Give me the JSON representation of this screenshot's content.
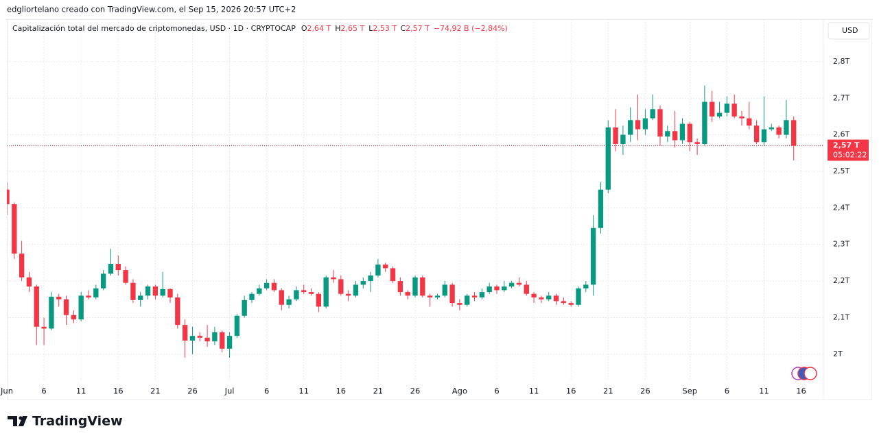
{
  "header": "edgliortelano creado con TradingView.com, el Sep 15, 2026 20:57 UTC+2",
  "brand": "TradingView",
  "chart_data": {
    "type": "candlestick",
    "title": "Capitalización total del mercado de criptomonedas, USD · 1D · CRYPTOCAP",
    "legend_values": [
      {
        "key": "O",
        "text": "2,64 T"
      },
      {
        "key": "H",
        "text": "2,65 T"
      },
      {
        "key": "L",
        "text": "2,53 T"
      },
      {
        "key": "C",
        "text": "2,57 T"
      }
    ],
    "change": "−74,92 B (−2,84%)",
    "currency": "USD",
    "last_price": {
      "value": 2.57,
      "label": "2,57 T"
    },
    "countdown": "05:02:22",
    "up_color": "#089981",
    "down_color": "#f23645",
    "grid": true,
    "x": [
      "2026-06-01",
      "2026-06-02",
      "2026-06-03",
      "2026-06-04",
      "2026-06-05",
      "2026-06-06",
      "2026-06-07",
      "2026-06-08",
      "2026-06-09",
      "2026-06-10",
      "2026-06-11",
      "2026-06-12",
      "2026-06-13",
      "2026-06-14",
      "2026-06-15",
      "2026-06-16",
      "2026-06-17",
      "2026-06-18",
      "2026-06-19",
      "2026-06-20",
      "2026-06-21",
      "2026-06-22",
      "2026-06-23",
      "2026-06-24",
      "2026-06-25",
      "2026-06-26",
      "2026-06-27",
      "2026-06-28",
      "2026-06-29",
      "2026-06-30",
      "2026-07-01",
      "2026-07-02",
      "2026-07-03",
      "2026-07-04",
      "2026-07-05",
      "2026-07-06",
      "2026-07-07",
      "2026-07-08",
      "2026-07-09",
      "2026-07-10",
      "2026-07-11",
      "2026-07-12",
      "2026-07-13",
      "2026-07-14",
      "2026-07-15",
      "2026-07-16",
      "2026-07-17",
      "2026-07-18",
      "2026-07-19",
      "2026-07-20",
      "2026-07-21",
      "2026-07-22",
      "2026-07-23",
      "2026-07-24",
      "2026-07-25",
      "2026-07-26",
      "2026-07-27",
      "2026-07-28",
      "2026-07-29",
      "2026-07-30",
      "2026-07-31",
      "2026-08-01",
      "2026-08-02",
      "2026-08-03",
      "2026-08-04",
      "2026-08-05",
      "2026-08-06",
      "2026-08-07",
      "2026-08-08",
      "2026-08-09",
      "2026-08-10",
      "2026-08-11",
      "2026-08-12",
      "2026-08-13",
      "2026-08-14",
      "2026-08-15",
      "2026-08-16",
      "2026-08-17",
      "2026-08-18",
      "2026-08-19",
      "2026-08-20",
      "2026-08-21",
      "2026-08-22",
      "2026-08-23",
      "2026-08-24",
      "2026-08-25",
      "2026-08-26",
      "2026-08-27",
      "2026-08-28",
      "2026-08-29",
      "2026-08-30",
      "2026-08-31",
      "2026-09-01",
      "2026-09-02",
      "2026-09-03",
      "2026-09-04",
      "2026-09-05",
      "2026-09-06",
      "2026-09-07",
      "2026-09-08",
      "2026-09-09",
      "2026-09-10",
      "2026-09-11",
      "2026-09-12",
      "2026-09-13",
      "2026-09-14",
      "2026-09-15"
    ],
    "open": [
      2.45,
      2.41,
      2.275,
      2.21,
      2.185,
      2.075,
      2.07,
      2.157,
      2.15,
      2.107,
      2.095,
      2.16,
      2.155,
      2.18,
      2.22,
      2.247,
      2.23,
      2.195,
      2.148,
      2.16,
      2.185,
      2.16,
      2.178,
      2.155,
      2.08,
      2.037,
      2.05,
      2.045,
      2.035,
      2.06,
      2.015,
      2.05,
      2.105,
      2.148,
      2.165,
      2.18,
      2.195,
      2.175,
      2.135,
      2.15,
      2.175,
      2.17,
      2.165,
      2.13,
      2.21,
      2.205,
      2.165,
      2.16,
      2.19,
      2.2,
      2.215,
      2.245,
      2.235,
      2.2,
      2.17,
      2.16,
      2.21,
      2.16,
      2.155,
      2.16,
      2.19,
      2.14,
      2.135,
      2.16,
      2.155,
      2.17,
      2.185,
      2.175,
      2.185,
      2.195,
      2.19,
      2.165,
      2.155,
      2.15,
      2.16,
      2.145,
      2.14,
      2.135,
      2.18,
      2.19,
      2.345,
      2.45,
      2.62,
      2.575,
      2.6,
      2.64,
      2.615,
      2.645,
      2.67,
      2.595,
      2.61,
      2.585,
      2.63,
      2.58,
      2.575,
      2.69,
      2.65,
      2.66,
      2.685,
      2.65,
      2.645,
      2.625,
      2.58,
      2.615,
      2.62,
      2.6,
      2.64
    ],
    "high": [
      2.47,
      2.415,
      2.31,
      2.225,
      2.19,
      2.1,
      2.17,
      2.165,
      2.16,
      2.12,
      2.17,
      2.175,
      2.19,
      2.23,
      2.288,
      2.27,
      2.24,
      2.205,
      2.17,
      2.19,
      2.19,
      2.225,
      2.18,
      2.165,
      2.095,
      2.075,
      2.06,
      2.08,
      2.075,
      2.065,
      2.06,
      2.11,
      2.16,
      2.17,
      2.19,
      2.205,
      2.205,
      2.18,
      2.16,
      2.185,
      2.19,
      2.18,
      2.17,
      2.215,
      2.23,
      2.215,
      2.175,
      2.2,
      2.21,
      2.225,
      2.26,
      2.25,
      2.24,
      2.21,
      2.175,
      2.215,
      2.215,
      2.165,
      2.165,
      2.2,
      2.195,
      2.15,
      2.165,
      2.17,
      2.18,
      2.195,
      2.19,
      2.2,
      2.2,
      2.21,
      2.2,
      2.17,
      2.16,
      2.17,
      2.165,
      2.155,
      2.145,
      2.185,
      2.2,
      2.38,
      2.47,
      2.64,
      2.67,
      2.625,
      2.675,
      2.71,
      2.67,
      2.71,
      2.68,
      2.625,
      2.665,
      2.645,
      2.635,
      2.59,
      2.735,
      2.72,
      2.69,
      2.705,
      2.71,
      2.665,
      2.69,
      2.64,
      2.705,
      2.63,
      2.625,
      2.695,
      2.65
    ],
    "low": [
      2.38,
      2.26,
      2.2,
      2.17,
      2.025,
      2.025,
      2.065,
      2.13,
      2.08,
      2.085,
      2.09,
      2.15,
      2.15,
      2.175,
      2.215,
      2.215,
      2.19,
      2.14,
      2.13,
      2.15,
      2.15,
      2.155,
      2.14,
      2.07,
      1.99,
      2.0,
      2.035,
      2.02,
      2.025,
      2.005,
      1.99,
      2.045,
      2.1,
      2.14,
      2.16,
      2.175,
      2.17,
      2.12,
      2.125,
      2.145,
      2.165,
      2.16,
      2.115,
      2.125,
      2.195,
      2.16,
      2.145,
      2.155,
      2.18,
      2.17,
      2.21,
      2.225,
      2.195,
      2.16,
      2.15,
      2.155,
      2.155,
      2.13,
      2.15,
      2.155,
      2.13,
      2.12,
      2.13,
      2.145,
      2.15,
      2.165,
      2.165,
      2.17,
      2.18,
      2.185,
      2.16,
      2.14,
      2.14,
      2.145,
      2.135,
      2.135,
      2.13,
      2.13,
      2.17,
      2.16,
      2.33,
      2.44,
      2.555,
      2.545,
      2.58,
      2.585,
      2.6,
      2.64,
      2.57,
      2.58,
      2.565,
      2.575,
      2.555,
      2.545,
      2.57,
      2.635,
      2.645,
      2.65,
      2.645,
      2.625,
      2.615,
      2.575,
      2.57,
      2.61,
      2.59,
      2.59,
      2.53
    ],
    "close": [
      2.41,
      2.275,
      2.21,
      2.185,
      2.075,
      2.07,
      2.157,
      2.15,
      2.107,
      2.095,
      2.16,
      2.155,
      2.18,
      2.22,
      2.247,
      2.23,
      2.195,
      2.148,
      2.16,
      2.185,
      2.16,
      2.178,
      2.155,
      2.08,
      2.037,
      2.05,
      2.045,
      2.035,
      2.06,
      2.015,
      2.05,
      2.105,
      2.148,
      2.165,
      2.18,
      2.195,
      2.175,
      2.135,
      2.15,
      2.175,
      2.17,
      2.165,
      2.13,
      2.21,
      2.205,
      2.165,
      2.16,
      2.19,
      2.2,
      2.215,
      2.245,
      2.235,
      2.2,
      2.17,
      2.16,
      2.21,
      2.16,
      2.155,
      2.16,
      2.19,
      2.14,
      2.135,
      2.16,
      2.155,
      2.17,
      2.185,
      2.175,
      2.185,
      2.195,
      2.19,
      2.165,
      2.155,
      2.15,
      2.16,
      2.145,
      2.14,
      2.135,
      2.18,
      2.19,
      2.345,
      2.45,
      2.62,
      2.575,
      2.6,
      2.64,
      2.615,
      2.645,
      2.67,
      2.595,
      2.61,
      2.585,
      2.63,
      2.58,
      2.575,
      2.69,
      2.65,
      2.66,
      2.685,
      2.65,
      2.645,
      2.625,
      2.58,
      2.615,
      2.62,
      2.6,
      2.64,
      2.57
    ],
    "xlim": [
      "2026-06-01",
      "2026-09-19"
    ],
    "xticks": [
      {
        "value": "2026-06-01",
        "label": "Jun"
      },
      {
        "value": "2026-06-06",
        "label": "6"
      },
      {
        "value": "2026-06-11",
        "label": "11"
      },
      {
        "value": "2026-06-16",
        "label": "16"
      },
      {
        "value": "2026-06-21",
        "label": "21"
      },
      {
        "value": "2026-06-26",
        "label": "26"
      },
      {
        "value": "2026-07-01",
        "label": "Jul"
      },
      {
        "value": "2026-07-06",
        "label": "6"
      },
      {
        "value": "2026-07-11",
        "label": "11"
      },
      {
        "value": "2026-07-16",
        "label": "16"
      },
      {
        "value": "2026-07-21",
        "label": "21"
      },
      {
        "value": "2026-07-26",
        "label": "26"
      },
      {
        "value": "2026-08-01",
        "label": "Ago"
      },
      {
        "value": "2026-08-06",
        "label": "6"
      },
      {
        "value": "2026-08-11",
        "label": "11"
      },
      {
        "value": "2026-08-16",
        "label": "16"
      },
      {
        "value": "2026-08-21",
        "label": "21"
      },
      {
        "value": "2026-08-26",
        "label": "26"
      },
      {
        "value": "2026-09-01",
        "label": "Sep"
      },
      {
        "value": "2026-09-06",
        "label": "6"
      },
      {
        "value": "2026-09-11",
        "label": "11"
      },
      {
        "value": "2026-09-16",
        "label": "16"
      }
    ],
    "ylim": [
      1.876,
      2.916
    ],
    "yticks": [
      {
        "value": 2,
        "label": "2T"
      },
      {
        "value": 2.1,
        "label": "2,1T"
      },
      {
        "value": 2.2,
        "label": "2,2T"
      },
      {
        "value": 2.3,
        "label": "2,3T"
      },
      {
        "value": 2.4,
        "label": "2,4T"
      },
      {
        "value": 2.5,
        "label": "2,5T"
      },
      {
        "value": 2.6,
        "label": "2,6T"
      },
      {
        "value": 2.7,
        "label": "2,7T"
      },
      {
        "value": 2.8,
        "label": "2,8T"
      }
    ]
  }
}
